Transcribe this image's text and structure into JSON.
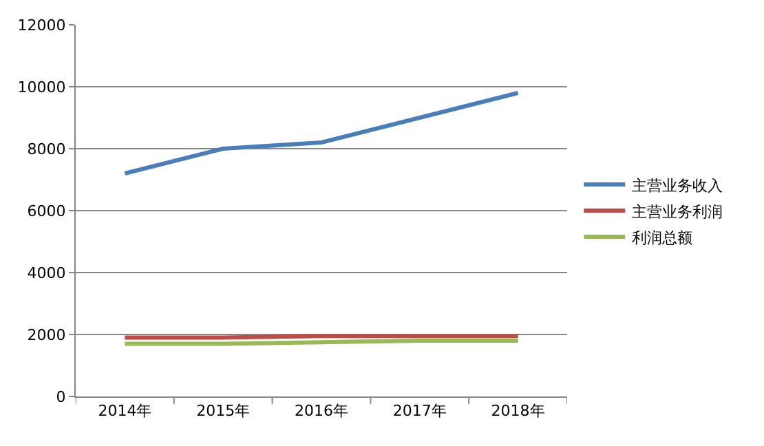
{
  "chart_data": {
    "type": "line",
    "categories": [
      "2014年",
      "2015年",
      "2016年",
      "2017年",
      "2018年"
    ],
    "series": [
      {
        "name": "主营业务收入",
        "color": "#4a7ebb",
        "values": [
          7200,
          8000,
          8200,
          9000,
          9800
        ]
      },
      {
        "name": "主营业务利润",
        "color": "#be4b48",
        "values": [
          1900,
          1900,
          1950,
          1950,
          1950
        ]
      },
      {
        "name": "利润总额",
        "color": "#98b954",
        "values": [
          1700,
          1700,
          1750,
          1800,
          1800
        ]
      }
    ],
    "ylim": [
      0,
      12000
    ],
    "yticks": [
      0,
      2000,
      4000,
      6000,
      8000,
      10000,
      12000
    ],
    "grid": "y",
    "legend": "right",
    "marker": "none",
    "line_style": "solid"
  }
}
